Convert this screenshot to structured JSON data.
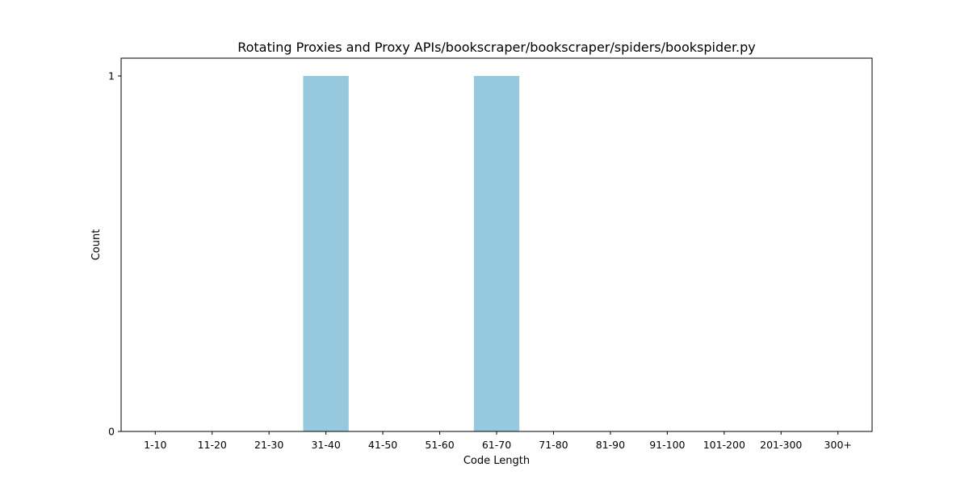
{
  "chart_data": {
    "type": "bar",
    "title": "Rotating Proxies and Proxy APIs/bookscraper/bookscraper/spiders/bookspider.py",
    "xlabel": "Code Length",
    "ylabel": "Count",
    "categories": [
      "1-10",
      "11-20",
      "21-30",
      "31-40",
      "41-50",
      "51-60",
      "61-70",
      "71-80",
      "81-90",
      "91-100",
      "101-200",
      "201-300",
      "300+"
    ],
    "values": [
      0,
      0,
      0,
      1,
      0,
      0,
      1,
      0,
      0,
      0,
      0,
      0,
      0
    ],
    "ylim": [
      0,
      1.05
    ],
    "yticks": [
      0,
      1
    ],
    "bar_color": "#96c9de",
    "grid": false,
    "legend": "none"
  }
}
